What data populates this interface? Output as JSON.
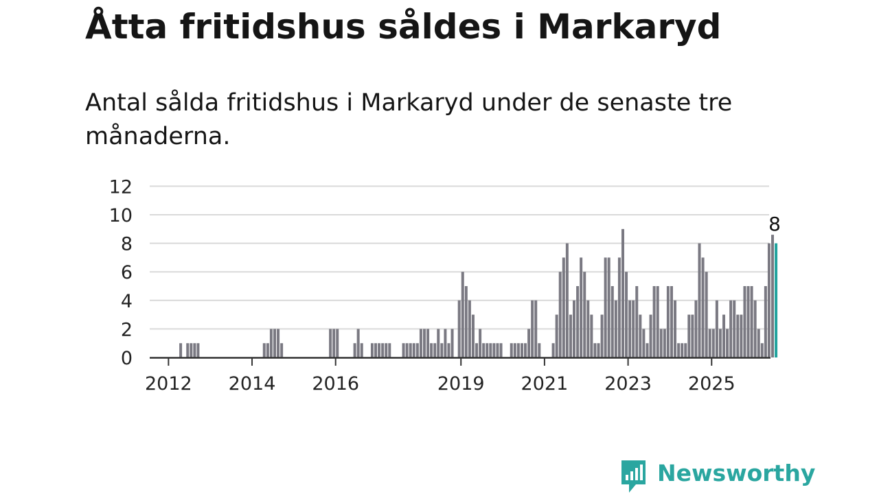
{
  "title": "Åtta fritidshus såldes i Markaryd",
  "subtitle": "Antal sålda fritidshus i Markaryd under de senaste tre månaderna.",
  "brand": "Newsworthy",
  "colors": {
    "bar": "#7a7982",
    "highlight": "#20a39e",
    "grid": "#d9d9d9",
    "axis": "#333333",
    "brand": "#2aa6a0"
  },
  "chart_data": {
    "type": "bar",
    "y_ticks": [
      "0",
      "2",
      "4",
      "6",
      "8",
      "10",
      "12"
    ],
    "ylim": [
      0,
      12
    ],
    "x_ticks": [
      "2012",
      "2014",
      "2016",
      "2019",
      "2021",
      "2023",
      "2025"
    ],
    "highlight_label": "8",
    "grid": true,
    "x_start": "2011-08",
    "values": [
      0,
      0,
      0,
      0,
      0,
      0,
      0,
      0,
      1,
      0,
      1,
      1,
      1,
      1,
      0,
      0,
      0,
      0,
      0,
      0,
      0,
      0,
      0,
      0,
      0,
      0,
      0,
      0,
      0,
      0,
      0,
      0,
      1,
      1,
      2,
      2,
      2,
      1,
      0,
      0,
      0,
      0,
      0,
      0,
      0,
      0,
      0,
      0,
      0,
      0,
      0,
      2,
      2,
      2,
      0,
      0,
      0,
      0,
      1,
      2,
      1,
      0,
      0,
      1,
      1,
      1,
      1,
      1,
      1,
      0,
      0,
      0,
      1,
      1,
      1,
      1,
      1,
      2,
      2,
      2,
      1,
      1,
      2,
      1,
      2,
      1,
      2,
      0,
      4,
      6,
      5,
      4,
      3,
      1,
      2,
      1,
      1,
      1,
      1,
      1,
      1,
      0,
      0,
      1,
      1,
      1,
      1,
      1,
      2,
      4,
      4,
      1,
      0,
      0,
      0,
      1,
      3,
      6,
      7,
      8,
      3,
      4,
      5,
      7,
      6,
      4,
      3,
      1,
      1,
      3,
      7,
      7,
      5,
      4,
      7,
      9,
      6,
      4,
      4,
      5,
      3,
      2,
      1,
      3,
      5,
      5,
      2,
      2,
      5,
      5,
      4,
      1,
      1,
      1,
      3,
      3,
      4,
      8,
      7,
      6,
      2,
      2,
      4,
      2,
      3,
      2,
      4,
      4,
      3,
      3,
      5,
      5,
      5,
      4,
      2,
      1,
      5,
      8,
      8.6,
      8
    ]
  }
}
